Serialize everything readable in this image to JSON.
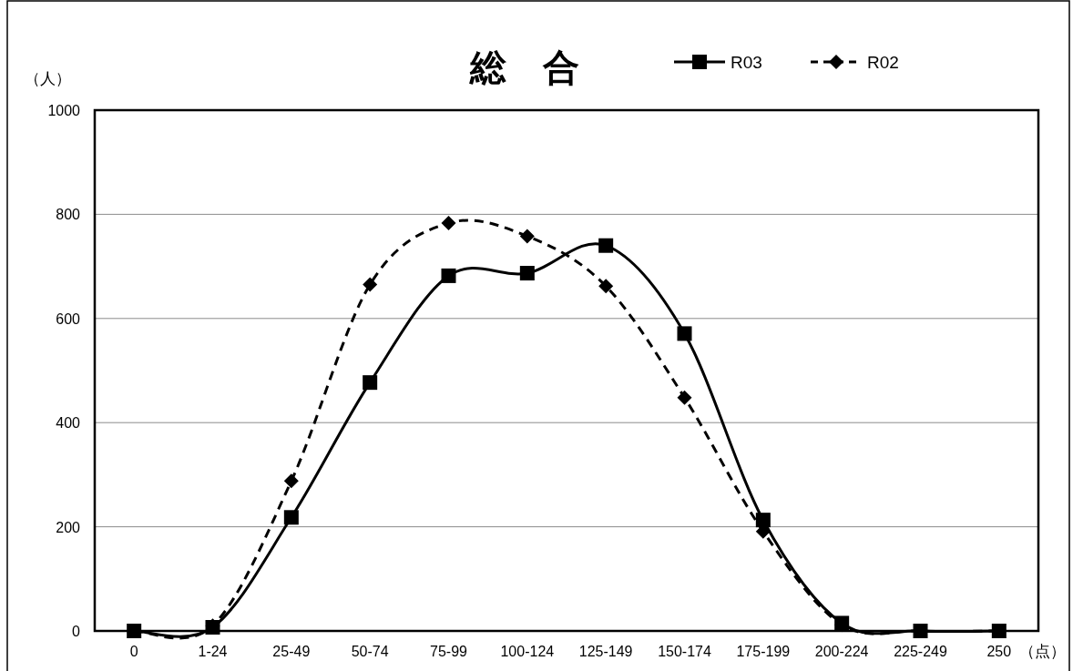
{
  "chart_data": {
    "type": "line",
    "title": "総　合",
    "ylabel": "（人）",
    "xlabel": "（点）",
    "categories": [
      "0",
      "1-24",
      "25-49",
      "50-74",
      "75-99",
      "100-124",
      "125-149",
      "150-174",
      "175-199",
      "200-224",
      "225-249",
      "250"
    ],
    "ylim": [
      0,
      1000
    ],
    "yticks": [
      0,
      200,
      400,
      600,
      800,
      1000
    ],
    "grid": "y",
    "legend": "top right",
    "series": [
      {
        "name": "R03",
        "color": "#000000",
        "marker": "square",
        "line_style": "solid",
        "values": [
          0,
          7,
          218,
          477,
          682,
          687,
          740,
          571,
          213,
          15,
          0,
          0
        ]
      },
      {
        "name": "R02",
        "color": "#000000",
        "marker": "diamond",
        "line_style": "dashed",
        "values": [
          0,
          10,
          288,
          665,
          783,
          758,
          662,
          448,
          191,
          12,
          0,
          0
        ]
      }
    ]
  }
}
